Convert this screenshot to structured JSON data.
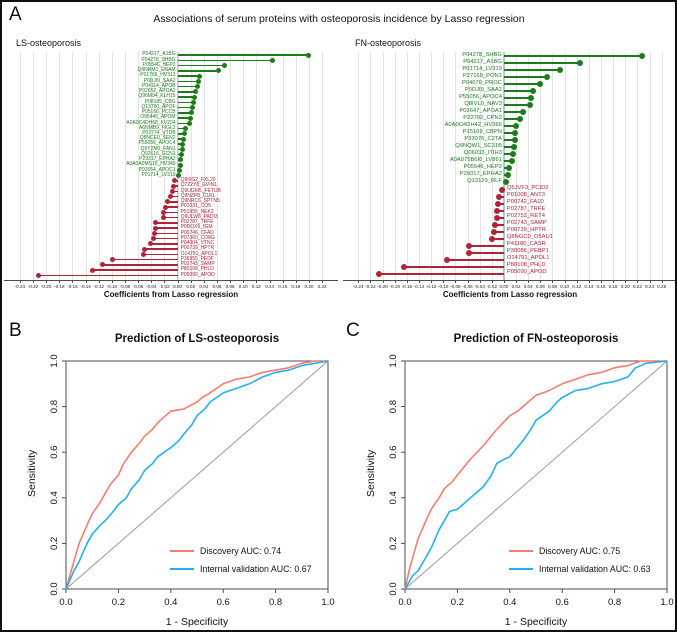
{
  "figure": {
    "panel_a_letter": "A",
    "panel_b_letter": "B",
    "panel_c_letter": "C",
    "panel_a_title": "Associations of serum proteins with osteoporosis incidence by Lasso regression"
  },
  "colors": {
    "positive": "#1c7c1c",
    "negative": "#b02438",
    "discovery": "#f97c6f",
    "validation": "#25aff3",
    "diagonal": "#9b9b9b",
    "grid": "#e4e4e4",
    "zero_line": "#b7c6cf",
    "axis": "#4d4d4d"
  },
  "chart_data": [
    {
      "id": "ls_lollipop",
      "type": "lollipop",
      "panel_label": "LS-osteoporosis",
      "xlabel": "Coefficients from Lasso regression",
      "xlim": [
        -0.252,
        0.232
      ],
      "ticks": [
        "-0.24",
        "-0.22",
        "-0.20",
        "-0.18",
        "-0.16",
        "-0.14",
        "-0.12",
        "-0.10",
        "-0.08",
        "-0.06",
        "-0.04",
        "-0.02",
        "0.00",
        "0.02",
        "0.04",
        "0.06",
        "0.08",
        "0.10",
        "0.12",
        "0.14",
        "0.16",
        "0.18",
        "0.20",
        "0.22"
      ],
      "points": [
        {
          "label": "P04217_A1BG",
          "value": 0.2
        },
        {
          "label": "P04278_SHBG",
          "value": 0.145
        },
        {
          "label": "P05546_HEP2",
          "value": 0.072
        },
        {
          "label": "Q9NRM1_ENAM",
          "value": 0.062
        },
        {
          "label": "P01766_HV313",
          "value": 0.034
        },
        {
          "label": "P0DJI9_SAA2",
          "value": 0.032
        },
        {
          "label": "P04114_APOB",
          "value": 0.03
        },
        {
          "label": "P02652_APOA2",
          "value": 0.028
        },
        {
          "label": "Q96M94_KLH15",
          "value": 0.026
        },
        {
          "label": "P08185_CBG",
          "value": 0.024
        },
        {
          "label": "Q13790_APOF",
          "value": 0.022
        },
        {
          "label": "P05166_PCCB",
          "value": 0.021
        },
        {
          "label": "O95445_APOM",
          "value": 0.02
        },
        {
          "label": "A0A0C4DH68_KV224",
          "value": 0.018
        },
        {
          "label": "A6NMB9_FIGL2",
          "value": 0.012
        },
        {
          "label": "P02774_VTDB",
          "value": 0.01
        },
        {
          "label": "Q8NCE0_SEN2",
          "value": 0.009
        },
        {
          "label": "P55056_APOC4",
          "value": 0.008
        },
        {
          "label": "Q9Y2M0_FAN1",
          "value": 0.007
        },
        {
          "label": "Q92616_GCN1",
          "value": 0.006
        },
        {
          "label": "P29317_EPHA2",
          "value": 0.005
        },
        {
          "label": "A0A0A0MS15_HV349",
          "value": 0.004
        },
        {
          "label": "P02654_APOC1",
          "value": 0.003
        },
        {
          "label": "P01714_LV319",
          "value": 0.002
        },
        {
          "label": "Q96IG2_FXL20",
          "value": -0.004
        },
        {
          "label": "Q7Z2Y8_GVIN1",
          "value": -0.006
        },
        {
          "label": "Q9UGM5_FETUB",
          "value": -0.008
        },
        {
          "label": "Q9NZP8_C1RL",
          "value": -0.011
        },
        {
          "label": "Q9NRC6_SPTN5",
          "value": -0.015
        },
        {
          "label": "P01031_CO5",
          "value": -0.018
        },
        {
          "label": "P51955_NEK2",
          "value": -0.021
        },
        {
          "label": "Q9ULW8_PADI3",
          "value": -0.022
        },
        {
          "label": "P02787_TRFE",
          "value": -0.033
        },
        {
          "label": "P0DOX5_IGM",
          "value": -0.034
        },
        {
          "label": "P00746_CFAD",
          "value": -0.035
        },
        {
          "label": "P07360_CO8G",
          "value": -0.036
        },
        {
          "label": "P04004_VTNC",
          "value": -0.041
        },
        {
          "label": "P00739_HPTR",
          "value": -0.051
        },
        {
          "label": "O14791_APOL1",
          "value": -0.052
        },
        {
          "label": "P36955_PEDF",
          "value": -0.099
        },
        {
          "label": "P02743_SAMP",
          "value": -0.115
        },
        {
          "label": "P80108_PHLD",
          "value": -0.13
        },
        {
          "label": "P05090_APOD",
          "value": -0.212
        }
      ]
    },
    {
      "id": "fn_lollipop",
      "type": "lollipop",
      "panel_label": "FN-osteoporosis",
      "xlabel": "Coefficients from Lasso regression",
      "xlim": [
        -0.252,
        0.272
      ],
      "ticks": [
        "-0.24",
        "-0.22",
        "-0.20",
        "-0.18",
        "-0.16",
        "-0.14",
        "-0.12",
        "-0.10",
        "-0.08",
        "-0.06",
        "-0.04",
        "-0.02",
        "0.00",
        "0.02",
        "0.04",
        "0.06",
        "0.08",
        "0.10",
        "0.12",
        "0.14",
        "0.16",
        "0.18",
        "0.20",
        "0.22",
        "0.24",
        "0.26"
      ],
      "points": [
        {
          "label": "P04278_SHBG",
          "value": 0.227
        },
        {
          "label": "P04217_A1BG",
          "value": 0.125
        },
        {
          "label": "P01714_LV319",
          "value": 0.092
        },
        {
          "label": "P27169_PON1",
          "value": 0.071
        },
        {
          "label": "P04070_PROC",
          "value": 0.059
        },
        {
          "label": "P0DJI9_SAA2",
          "value": 0.048
        },
        {
          "label": "P55056_APOC4",
          "value": 0.044
        },
        {
          "label": "Q8IVL0_NAV3",
          "value": 0.043
        },
        {
          "label": "P02647_APOA1",
          "value": 0.031
        },
        {
          "label": "P22792_CPN2",
          "value": 0.027
        },
        {
          "label": "A0A0C4DH42_HV366",
          "value": 0.02
        },
        {
          "label": "P15169_CBPN",
          "value": 0.019
        },
        {
          "label": "P33076_C2TA",
          "value": 0.018
        },
        {
          "label": "Q9NQW1_SC31B",
          "value": 0.016
        },
        {
          "label": "Q06033_ITIH3",
          "value": 0.015
        },
        {
          "label": "A0A075B6I0_LV861",
          "value": 0.014
        },
        {
          "label": "P05546_HEP2",
          "value": 0.009
        },
        {
          "label": "P29317_EPHA2",
          "value": 0.006
        },
        {
          "label": "Q13129_RLF",
          "value": 0.004
        },
        {
          "label": "Q5JVF3_PCID2",
          "value": -0.004
        },
        {
          "label": "P01008_ANT3",
          "value": -0.008
        },
        {
          "label": "P00742_FA10",
          "value": -0.009
        },
        {
          "label": "P02787_TRFE",
          "value": -0.012
        },
        {
          "label": "P02753_RET4",
          "value": -0.012
        },
        {
          "label": "P02743_SAMP",
          "value": -0.014
        },
        {
          "label": "P00739_HPTR",
          "value": -0.017
        },
        {
          "label": "Q8NGC0_O5AU1",
          "value": -0.02
        },
        {
          "label": "P41180_CASR",
          "value": -0.057
        },
        {
          "label": "P30086_PEBP1",
          "value": -0.058
        },
        {
          "label": "O14791_APOL1",
          "value": -0.093
        },
        {
          "label": "P80108_PHLD",
          "value": -0.165
        },
        {
          "label": "P05090_APOD",
          "value": -0.206
        }
      ]
    },
    {
      "id": "roc_ls",
      "type": "roc",
      "title": "Prediction of LS-osteoporosis",
      "xlabel": "1 - Specificity",
      "ylabel": "Sensitivity",
      "xticks": [
        "0.0",
        "0.2",
        "0.4",
        "0.6",
        "0.8",
        "1.0"
      ],
      "yticks": [
        "0.0",
        "0.2",
        "0.4",
        "0.6",
        "0.8",
        "1.0"
      ],
      "series": [
        {
          "name": "Discovery",
          "auc": 0.74,
          "legend_label": "Discovery AUC: 0.74",
          "color_key": "discovery",
          "points": [
            [
              0,
              0
            ],
            [
              0.02,
              0.08
            ],
            [
              0.05,
              0.2
            ],
            [
              0.08,
              0.28
            ],
            [
              0.1,
              0.33
            ],
            [
              0.13,
              0.38
            ],
            [
              0.15,
              0.42
            ],
            [
              0.17,
              0.46
            ],
            [
              0.2,
              0.5
            ],
            [
              0.22,
              0.55
            ],
            [
              0.25,
              0.6
            ],
            [
              0.28,
              0.64
            ],
            [
              0.3,
              0.67
            ],
            [
              0.33,
              0.7
            ],
            [
              0.35,
              0.73
            ],
            [
              0.38,
              0.76
            ],
            [
              0.4,
              0.78
            ],
            [
              0.45,
              0.79
            ],
            [
              0.5,
              0.82
            ],
            [
              0.52,
              0.84
            ],
            [
              0.55,
              0.86
            ],
            [
              0.6,
              0.9
            ],
            [
              0.65,
              0.92
            ],
            [
              0.7,
              0.93
            ],
            [
              0.75,
              0.95
            ],
            [
              0.8,
              0.96
            ],
            [
              0.85,
              0.97
            ],
            [
              0.9,
              0.99
            ],
            [
              0.95,
              1.0
            ],
            [
              1,
              1
            ]
          ]
        },
        {
          "name": "Internal validation",
          "auc": 0.67,
          "legend_label": "Internal validation AUC: 0.67",
          "color_key": "validation",
          "points": [
            [
              0,
              0
            ],
            [
              0.03,
              0.08
            ],
            [
              0.05,
              0.12
            ],
            [
              0.08,
              0.2
            ],
            [
              0.1,
              0.24
            ],
            [
              0.13,
              0.28
            ],
            [
              0.15,
              0.3
            ],
            [
              0.18,
              0.34
            ],
            [
              0.2,
              0.37
            ],
            [
              0.23,
              0.4
            ],
            [
              0.25,
              0.44
            ],
            [
              0.28,
              0.48
            ],
            [
              0.3,
              0.52
            ],
            [
              0.33,
              0.55
            ],
            [
              0.35,
              0.58
            ],
            [
              0.4,
              0.62
            ],
            [
              0.43,
              0.65
            ],
            [
              0.45,
              0.68
            ],
            [
              0.48,
              0.72
            ],
            [
              0.5,
              0.76
            ],
            [
              0.53,
              0.79
            ],
            [
              0.55,
              0.82
            ],
            [
              0.6,
              0.86
            ],
            [
              0.65,
              0.88
            ],
            [
              0.7,
              0.9
            ],
            [
              0.75,
              0.93
            ],
            [
              0.8,
              0.95
            ],
            [
              0.85,
              0.96
            ],
            [
              0.9,
              0.98
            ],
            [
              0.95,
              0.99
            ],
            [
              1,
              1
            ]
          ]
        }
      ]
    },
    {
      "id": "roc_fn",
      "type": "roc",
      "title": "Prediction of FN-osteoporosis",
      "xlabel": "1 - Specificity",
      "ylabel": "Sensitivity",
      "xticks": [
        "0.0",
        "0.2",
        "0.4",
        "0.6",
        "0.8",
        "1.0"
      ],
      "yticks": [
        "0.0",
        "0.2",
        "0.4",
        "0.6",
        "0.8",
        "1.0"
      ],
      "series": [
        {
          "name": "Discovery",
          "auc": 0.75,
          "legend_label": "Discovery AUC: 0.75",
          "color_key": "discovery",
          "points": [
            [
              0,
              0
            ],
            [
              0.02,
              0.1
            ],
            [
              0.05,
              0.22
            ],
            [
              0.08,
              0.3
            ],
            [
              0.1,
              0.35
            ],
            [
              0.13,
              0.4
            ],
            [
              0.15,
              0.44
            ],
            [
              0.18,
              0.47
            ],
            [
              0.2,
              0.5
            ],
            [
              0.25,
              0.57
            ],
            [
              0.3,
              0.63
            ],
            [
              0.35,
              0.7
            ],
            [
              0.4,
              0.76
            ],
            [
              0.43,
              0.78
            ],
            [
              0.45,
              0.8
            ],
            [
              0.5,
              0.85
            ],
            [
              0.55,
              0.87
            ],
            [
              0.6,
              0.9
            ],
            [
              0.65,
              0.92
            ],
            [
              0.7,
              0.94
            ],
            [
              0.75,
              0.95
            ],
            [
              0.8,
              0.97
            ],
            [
              0.85,
              0.98
            ],
            [
              0.9,
              1.0
            ],
            [
              1,
              1
            ]
          ]
        },
        {
          "name": "Internal validation",
          "auc": 0.63,
          "legend_label": "Internal validation AUC: 0.63",
          "color_key": "validation",
          "points": [
            [
              0,
              0
            ],
            [
              0.03,
              0.06
            ],
            [
              0.05,
              0.08
            ],
            [
              0.08,
              0.14
            ],
            [
              0.1,
              0.18
            ],
            [
              0.13,
              0.26
            ],
            [
              0.15,
              0.3
            ],
            [
              0.17,
              0.34
            ],
            [
              0.2,
              0.35
            ],
            [
              0.23,
              0.38
            ],
            [
              0.25,
              0.4
            ],
            [
              0.28,
              0.43
            ],
            [
              0.3,
              0.45
            ],
            [
              0.33,
              0.5
            ],
            [
              0.35,
              0.55
            ],
            [
              0.38,
              0.57
            ],
            [
              0.4,
              0.58
            ],
            [
              0.45,
              0.65
            ],
            [
              0.48,
              0.7
            ],
            [
              0.5,
              0.74
            ],
            [
              0.55,
              0.78
            ],
            [
              0.58,
              0.82
            ],
            [
              0.6,
              0.84
            ],
            [
              0.65,
              0.87
            ],
            [
              0.7,
              0.88
            ],
            [
              0.75,
              0.9
            ],
            [
              0.8,
              0.91
            ],
            [
              0.85,
              0.93
            ],
            [
              0.88,
              0.97
            ],
            [
              0.92,
              0.99
            ],
            [
              1,
              1
            ]
          ]
        }
      ]
    }
  ]
}
